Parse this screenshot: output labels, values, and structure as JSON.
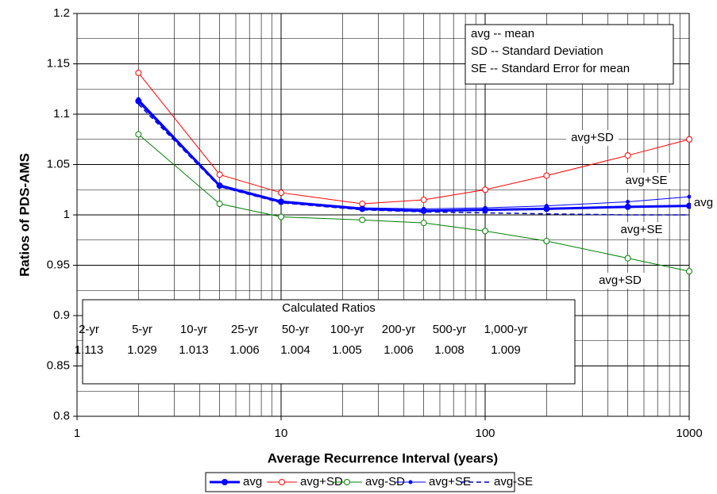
{
  "chart_data": {
    "type": "line",
    "x_label": "Average Recurrence Interval (years)",
    "y_label": "Ratios of PDS-AMS",
    "x": [
      2,
      5,
      10,
      25,
      50,
      100,
      200,
      500,
      1000
    ],
    "xlim": [
      1,
      1000
    ],
    "xticks": [
      1,
      10,
      100,
      1000
    ],
    "xlog": true,
    "ylim": [
      0.8,
      1.2
    ],
    "yticks": [
      {
        "value": 0.8,
        "label": "0.8"
      },
      0.85,
      0.9,
      0.95,
      {
        "value": 1,
        "label": "1"
      },
      1.05,
      1.1,
      1.15,
      {
        "value": 1.2,
        "label": "1.2"
      }
    ],
    "grid": true,
    "series": [
      {
        "name": "avg",
        "color": "#0000ff",
        "width": 3,
        "marker": "filled",
        "dash": false,
        "values": [
          1.113,
          1.029,
          1.013,
          1.006,
          1.004,
          1.005,
          1.006,
          1.008,
          1.009
        ]
      },
      {
        "name": "avg+SD",
        "color": "#ff0000",
        "width": 1,
        "marker": "open",
        "dash": false,
        "values": [
          1.141,
          1.04,
          1.022,
          1.011,
          1.015,
          1.025,
          1.039,
          1.059,
          1.075
        ]
      },
      {
        "name": "avg-SD",
        "color": "#008000",
        "width": 1,
        "marker": "open",
        "dash": false,
        "values": [
          1.08,
          1.011,
          0.998,
          0.995,
          0.992,
          0.984,
          0.974,
          0.957,
          0.944
        ]
      },
      {
        "name": "avg+SE",
        "color": "#0000ff",
        "width": 1,
        "marker": "small",
        "dash": false,
        "values": [
          1.115,
          1.03,
          1.014,
          1.007,
          1.006,
          1.007,
          1.009,
          1.013,
          1.018
        ]
      },
      {
        "name": "avg-SE",
        "color": "#0000cc",
        "width": 1.5,
        "marker": "none",
        "dash": true,
        "values": [
          1.11,
          1.028,
          1.012,
          1.005,
          1.003,
          1.002,
          1.001,
          1.0,
          1.0
        ]
      }
    ],
    "annotations": [
      "avg+SD",
      "avg+SE",
      "avg",
      "avg+SE",
      "avg+SD"
    ],
    "key_box": [
      "avg -- mean",
      "SD -- Standard Deviation",
      "SE -- Standard Error for mean"
    ],
    "ratios_table": {
      "title": "Calculated Ratios",
      "headers": [
        "2-yr",
        "5-yr",
        "10-yr",
        "25-yr",
        "50-yr",
        "100-yr",
        "200-yr",
        "500-yr",
        "1,000-yr"
      ],
      "values": [
        1.113,
        1.029,
        1.013,
        1.006,
        1.004,
        1.005,
        1.006,
        1.008,
        1.009
      ]
    }
  }
}
